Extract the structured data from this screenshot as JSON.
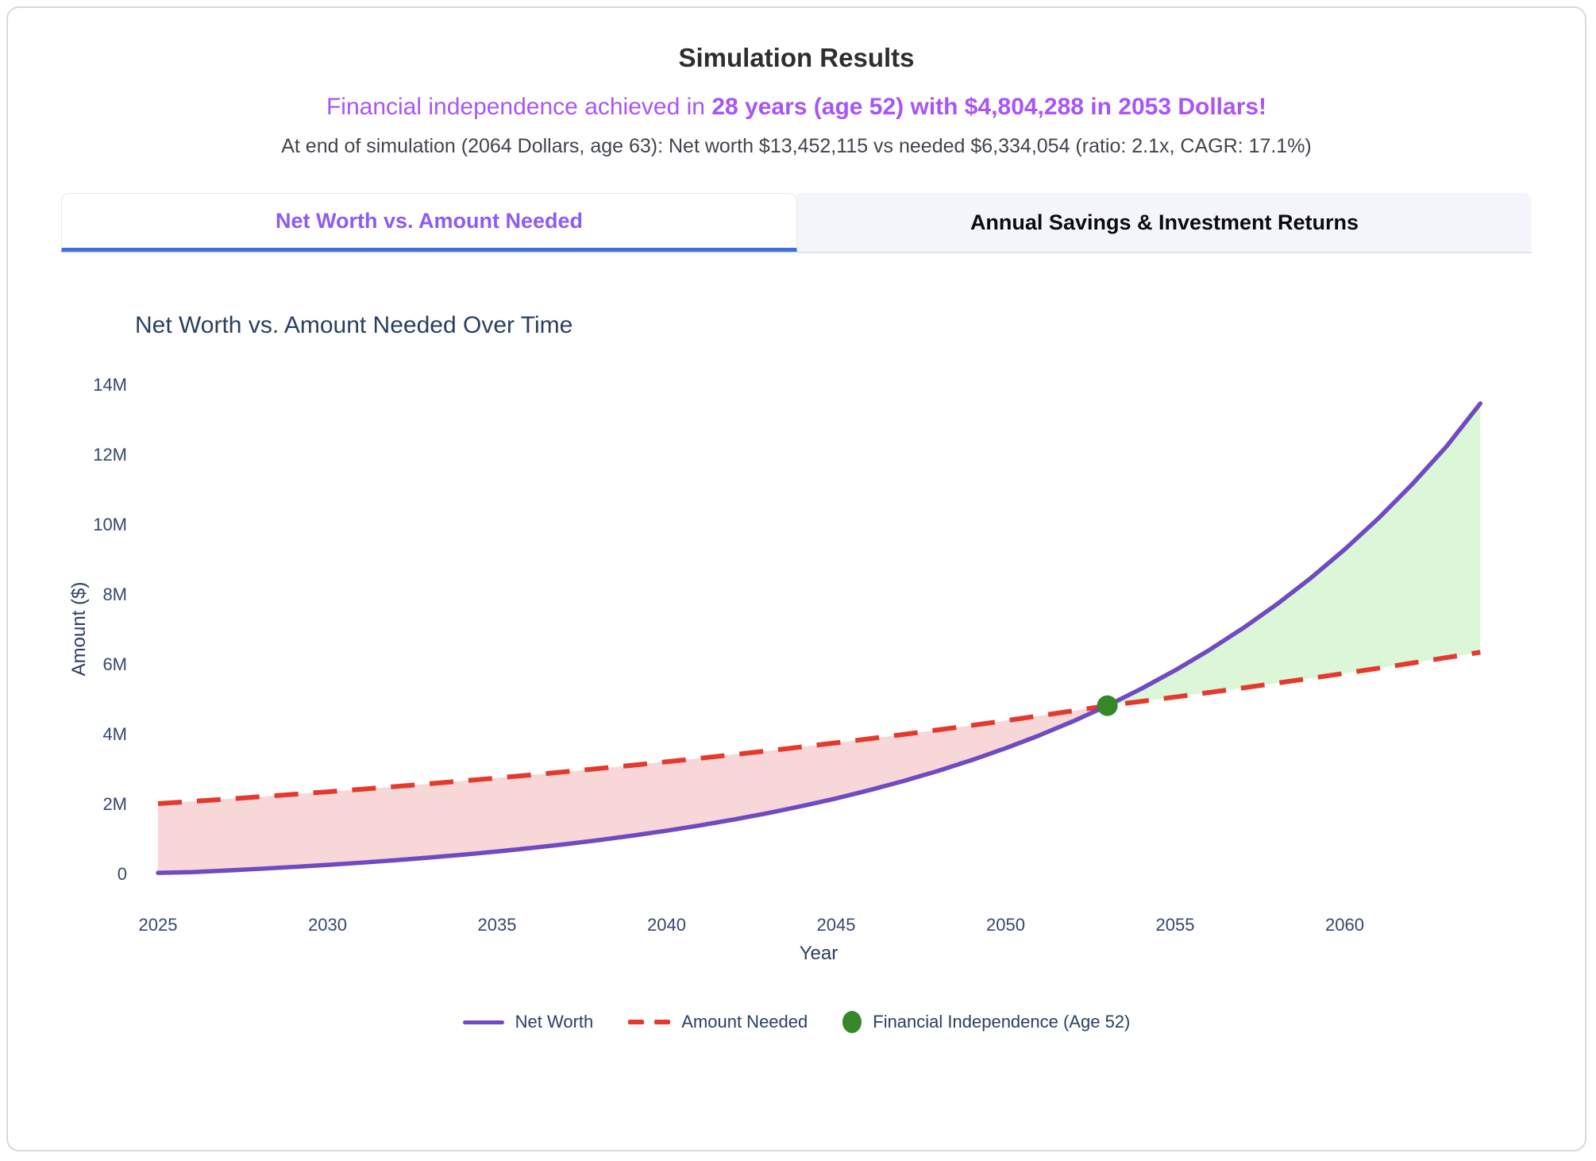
{
  "header": {
    "title": "Simulation Results",
    "subtitle_plain": "Financial independence achieved in ",
    "subtitle_bold": "28 years (age 52) with $4,804,288 in 2053 Dollars!",
    "stats": "At end of simulation (2064 Dollars, age 63): Net worth $13,452,115 vs needed $6,334,054 (ratio: 2.1x, CAGR: 17.1%)"
  },
  "tabs": [
    {
      "label": "Net Worth vs. Amount Needed",
      "active": true
    },
    {
      "label": "Annual Savings & Investment Returns",
      "active": false
    }
  ],
  "colors": {
    "accent_purple": "#a855f7",
    "tab_active_text": "#8b5cf6",
    "tab_underline_blue": "#3a70e2",
    "tab_inactive_bg": "#f4f5fb",
    "chart_text": "#2a3f5f"
  },
  "chart_data": {
    "type": "line",
    "title": "Net Worth vs. Amount Needed Over Time",
    "xlabel": "Year",
    "ylabel": "Amount ($)",
    "xlim": [
      2025,
      2064
    ],
    "ylim": [
      0,
      14000000
    ],
    "grid": false,
    "legend_position": "bottom-center",
    "x_ticks": [
      2025,
      2030,
      2035,
      2040,
      2045,
      2050,
      2055,
      2060
    ],
    "y_ticks": [
      {
        "v": 0,
        "label": "0"
      },
      {
        "v": 2000000,
        "label": "2M"
      },
      {
        "v": 4000000,
        "label": "4M"
      },
      {
        "v": 6000000,
        "label": "6M"
      },
      {
        "v": 8000000,
        "label": "8M"
      },
      {
        "v": 10000000,
        "label": "10M"
      },
      {
        "v": 12000000,
        "label": "12M"
      },
      {
        "v": 14000000,
        "label": "14M"
      }
    ],
    "years": [
      2025,
      2026,
      2027,
      2028,
      2029,
      2030,
      2031,
      2032,
      2033,
      2034,
      2035,
      2036,
      2037,
      2038,
      2039,
      2040,
      2041,
      2042,
      2043,
      2044,
      2045,
      2046,
      2047,
      2048,
      2049,
      2050,
      2051,
      2052,
      2053,
      2054,
      2055,
      2056,
      2057,
      2058,
      2059,
      2060,
      2061,
      2062,
      2063,
      2064
    ],
    "series": [
      {
        "name": "Net Worth",
        "color": "#6f4ac2",
        "style": "solid",
        "values": [
          20000,
          41000,
          86000,
          135000,
          189000,
          247000,
          311000,
          380000,
          457000,
          540000,
          631000,
          730000,
          838000,
          956000,
          1085000,
          1226000,
          1380000,
          1548000,
          1731000,
          1932000,
          2150000,
          2390000,
          2650000,
          2935000,
          3246000,
          3586000,
          3957000,
          4362000,
          4804288,
          5289000,
          5816000,
          6392000,
          7021000,
          7707000,
          8457000,
          9276000,
          10170000,
          11150000,
          12220000,
          13452115
        ]
      },
      {
        "name": "Amount Needed",
        "color": "#e5392d",
        "style": "dashed",
        "values": [
          2000000,
          2064000,
          2129000,
          2197000,
          2267000,
          2339000,
          2413000,
          2490000,
          2569000,
          2651000,
          2735000,
          2822000,
          2912000,
          3005000,
          3100000,
          3199000,
          3301000,
          3406000,
          3514000,
          3626000,
          3741000,
          3860000,
          3983000,
          4110000,
          4240000,
          4375000,
          4514000,
          4658000,
          4804288,
          4927000,
          5052000,
          5181000,
          5313000,
          5449000,
          5588000,
          5730000,
          5876000,
          6026000,
          6180000,
          6334054
        ]
      }
    ],
    "fills": [
      {
        "name": "deficit-fill",
        "from_year": 2025,
        "to_year": 2053,
        "color": "#f7d7d8"
      },
      {
        "name": "surplus-fill",
        "from_year": 2053,
        "to_year": 2064,
        "color": "#dcf7d7"
      }
    ],
    "fi_point": {
      "year": 2053,
      "value": 4804288,
      "age": 52,
      "color": "#368727",
      "label": "Financial Independence (Age 52)"
    }
  }
}
